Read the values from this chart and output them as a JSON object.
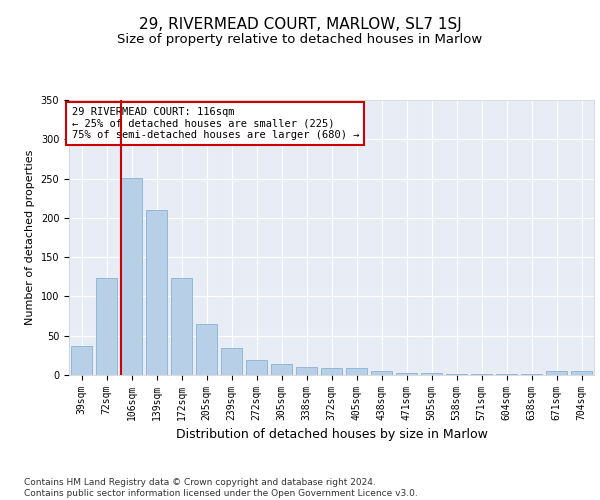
{
  "title": "29, RIVERMEAD COURT, MARLOW, SL7 1SJ",
  "subtitle": "Size of property relative to detached houses in Marlow",
  "xlabel": "Distribution of detached houses by size in Marlow",
  "ylabel": "Number of detached properties",
  "categories": [
    "39sqm",
    "72sqm",
    "106sqm",
    "139sqm",
    "172sqm",
    "205sqm",
    "239sqm",
    "272sqm",
    "305sqm",
    "338sqm",
    "372sqm",
    "405sqm",
    "438sqm",
    "471sqm",
    "505sqm",
    "538sqm",
    "571sqm",
    "604sqm",
    "638sqm",
    "671sqm",
    "704sqm"
  ],
  "values": [
    37,
    124,
    251,
    210,
    124,
    65,
    35,
    19,
    14,
    10,
    9,
    9,
    5,
    3,
    3,
    1,
    1,
    1,
    1,
    5,
    5
  ],
  "bar_color": "#b8cfe8",
  "bar_edge_color": "#7aaad0",
  "vline_color": "#cc0000",
  "annotation_text": "29 RIVERMEAD COURT: 116sqm\n← 25% of detached houses are smaller (225)\n75% of semi-detached houses are larger (680) →",
  "annotation_box_color": "#ffffff",
  "annotation_box_edge": "#cc0000",
  "ylim": [
    0,
    350
  ],
  "yticks": [
    0,
    50,
    100,
    150,
    200,
    250,
    300,
    350
  ],
  "bg_color": "#e8edf5",
  "fig_bg_color": "#ffffff",
  "footer": "Contains HM Land Registry data © Crown copyright and database right 2024.\nContains public sector information licensed under the Open Government Licence v3.0.",
  "title_fontsize": 11,
  "subtitle_fontsize": 9.5,
  "xlabel_fontsize": 9,
  "ylabel_fontsize": 8,
  "tick_fontsize": 7,
  "footer_fontsize": 6.5,
  "annot_fontsize": 7.5
}
